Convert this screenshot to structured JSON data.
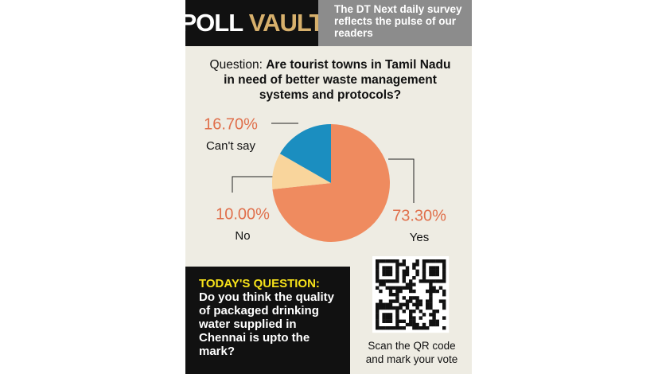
{
  "header": {
    "title_1": "POLL",
    "title_2": "VAULT",
    "tagline": "The DT Next daily survey reflects the pulse of our readers"
  },
  "chart_data": {
    "type": "pie",
    "question_label": "Question:",
    "title": "Are tourist towns in Tamil Nadu in need of better waste management systems and protocols?",
    "categories": [
      "Yes",
      "No",
      "Can't say"
    ],
    "values": [
      73.3,
      10,
      16.7
    ],
    "value_labels": [
      "73.30%",
      "10.00%",
      "16.70%"
    ],
    "colors": [
      "#ef8b5f",
      "#f9d59c",
      "#1b8ec0"
    ]
  },
  "today": {
    "label": "TODAY'S QUESTION:",
    "text": "Do you think the quality of packaged drinking water supplied in Chennai is upto the mark?"
  },
  "qr": {
    "caption": "Scan the QR code and mark your vote"
  }
}
